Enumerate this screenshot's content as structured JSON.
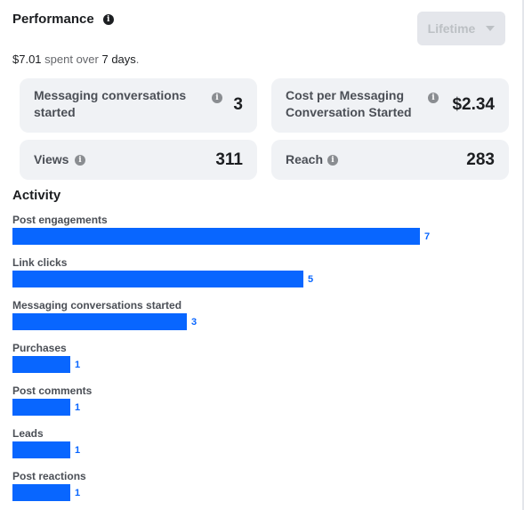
{
  "header": {
    "title": "Performance",
    "info_glyph": "i",
    "dropdown_label": "Lifetime"
  },
  "spend": {
    "amount": "$7.01",
    "middle": " spent over ",
    "days": "7 days",
    "end": "."
  },
  "cards": [
    {
      "label": "Messaging conversations started",
      "value": "3",
      "has_info": true
    },
    {
      "label": "Cost per Messaging Conversation Started",
      "value": "$2.34",
      "has_info": true
    },
    {
      "label": "Views",
      "value": "311",
      "has_info": true
    },
    {
      "label": "Reach",
      "value": "283",
      "has_info": true
    }
  ],
  "activity": {
    "title": "Activity",
    "max_value": 7,
    "rows": [
      {
        "label": "Post engagements",
        "value": 7
      },
      {
        "label": "Link clicks",
        "value": 5
      },
      {
        "label": "Messaging conversations started",
        "value": 3
      },
      {
        "label": "Purchases",
        "value": 1
      },
      {
        "label": "Post comments",
        "value": 1
      },
      {
        "label": "Leads",
        "value": 1
      },
      {
        "label": "Post reactions",
        "value": 1
      }
    ]
  },
  "colors": {
    "bar": "#0866ff",
    "card_bg": "#f0f2f5",
    "dropdown_bg": "#e4e6eb"
  },
  "icons": {
    "info": "info-icon",
    "dropdown": "caret-down-icon"
  }
}
